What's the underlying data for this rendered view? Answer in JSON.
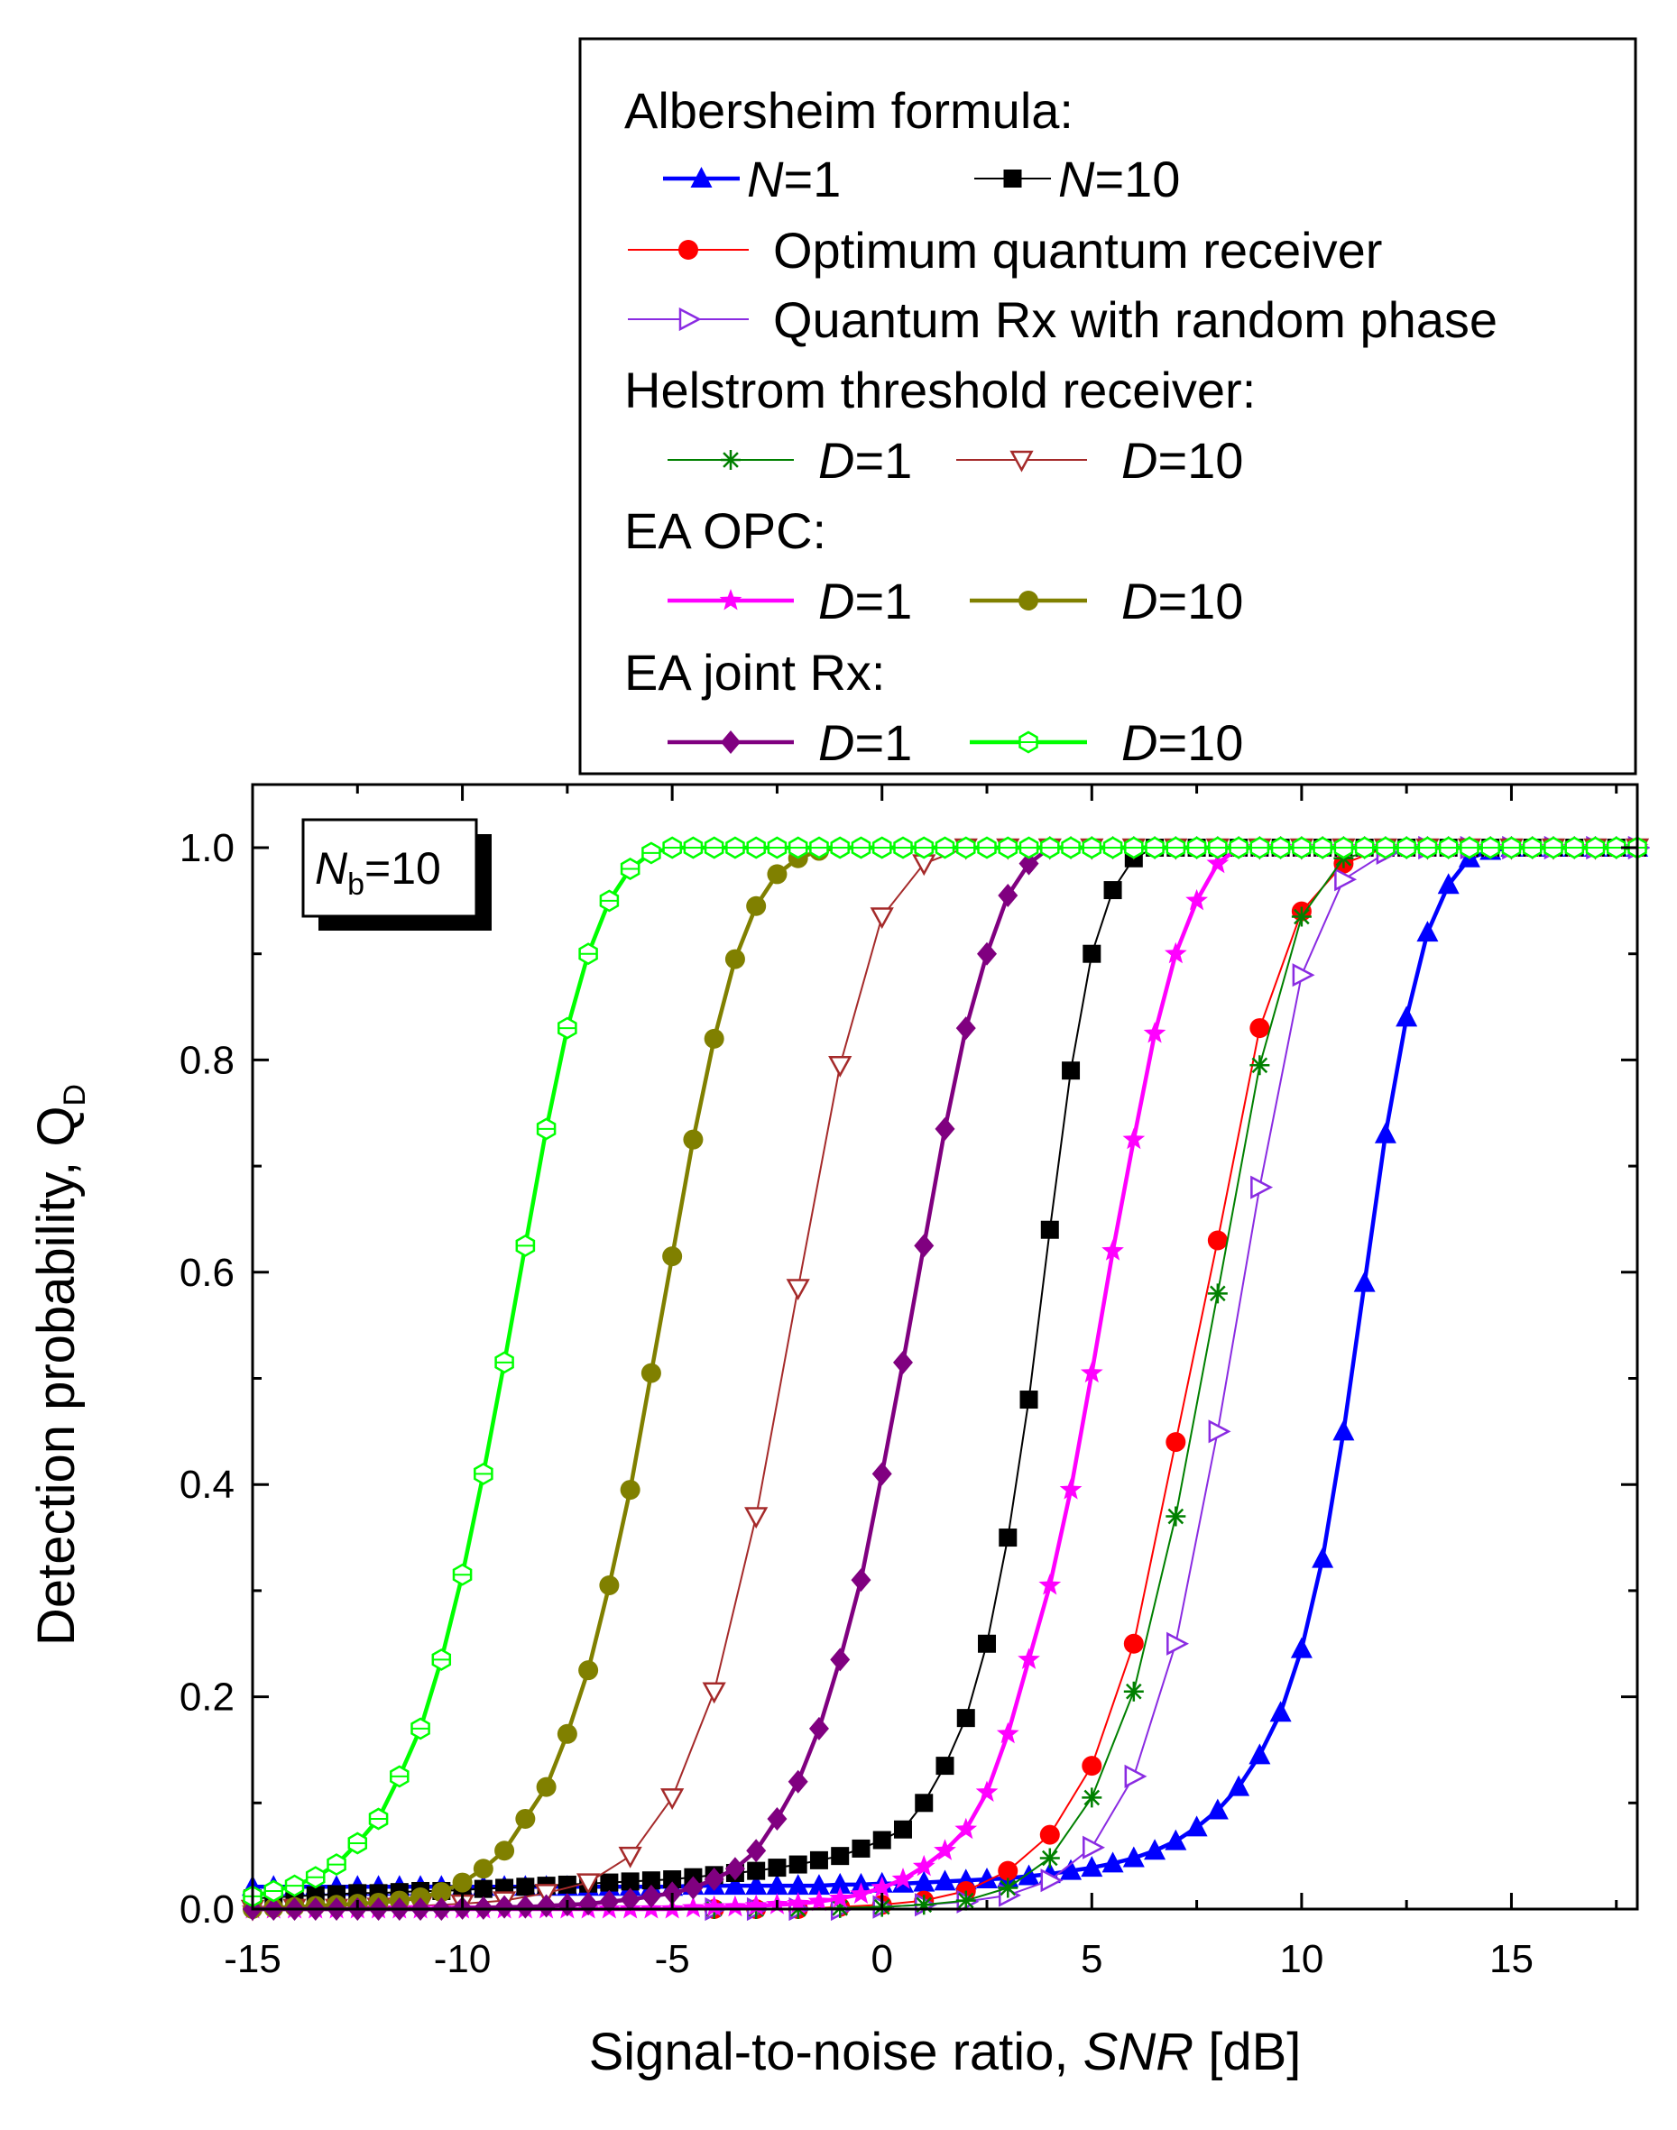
{
  "chart_data": {
    "type": "line",
    "title": "",
    "xlabel_main": "Signal-to-noise ratio, ",
    "xlabel_italic": "SNR",
    "xlabel_unit": " [dB]",
    "ylabel_main": "Detection probability, Q",
    "ylabel_sub": "D",
    "xlim": [
      -15,
      18
    ],
    "ylim": [
      0,
      1.04
    ],
    "xticks": [
      -15,
      -10,
      -5,
      0,
      5,
      10,
      15
    ],
    "xtick_labels": [
      "-15",
      "-10",
      "-5",
      "0",
      "5",
      "10",
      "15"
    ],
    "yticks": [
      0,
      0.2,
      0.4,
      0.6,
      0.8,
      1.0
    ],
    "ytick_labels": [
      "0.0",
      "0.2",
      "0.4",
      "0.6",
      "0.8",
      "1.0"
    ],
    "grid": false,
    "annotation": {
      "main": "N",
      "sub": "b",
      "rest": "=10"
    },
    "legend": {
      "placement": "top-right",
      "headers": [
        "Albersheim formula:",
        "Helstrom threshold receiver:",
        "EA OPC:",
        "EA joint Rx:"
      ],
      "entries": [
        {
          "series": 0,
          "italic": "N",
          "rest": "=1"
        },
        {
          "series": 1,
          "italic": "N",
          "rest": "=10"
        },
        {
          "series": 2,
          "italic": "",
          "rest": "Optimum quantum receiver"
        },
        {
          "series": 3,
          "italic": "",
          "rest": "Quantum Rx with random phase"
        },
        {
          "series": 4,
          "italic": "D",
          "rest": "=1"
        },
        {
          "series": 5,
          "italic": "D",
          "rest": "=10"
        },
        {
          "series": 6,
          "italic": "D",
          "rest": "=1"
        },
        {
          "series": 7,
          "italic": "D",
          "rest": "=10"
        },
        {
          "series": 8,
          "italic": "D",
          "rest": "=1"
        },
        {
          "series": 9,
          "italic": "D",
          "rest": "=10"
        }
      ]
    },
    "series": [
      {
        "name": "Albersheim formula, N=1",
        "color": "#0000ff",
        "marker": "triangle-up",
        "line": "thick",
        "x": [
          -15,
          -14.5,
          -14,
          -13.5,
          -13,
          -12.5,
          -12,
          -11.5,
          -11,
          -10.5,
          -10,
          -9.5,
          -9,
          -8.5,
          -8,
          -7.5,
          -7,
          -6.5,
          -6,
          -5.5,
          -5,
          -4.5,
          -4,
          -3.5,
          -3,
          -2.5,
          -2,
          -1.5,
          -1,
          -0.5,
          0,
          0.5,
          1,
          1.5,
          2,
          2.5,
          3,
          3.5,
          4,
          4.5,
          5,
          5.5,
          6,
          6.5,
          7,
          7.5,
          8,
          8.5,
          9,
          9.5,
          10,
          10.5,
          11,
          11.5,
          12,
          12.5,
          13,
          13.5,
          14,
          14.5,
          15,
          15.5,
          16,
          16.5,
          17,
          17.5,
          18
        ],
        "y": [
          0.021,
          0.021,
          0.021,
          0.021,
          0.021,
          0.021,
          0.021,
          0.021,
          0.021,
          0.021,
          0.021,
          0.021,
          0.021,
          0.021,
          0.021,
          0.021,
          0.021,
          0.021,
          0.021,
          0.021,
          0.021,
          0.022,
          0.022,
          0.022,
          0.022,
          0.022,
          0.022,
          0.022,
          0.023,
          0.023,
          0.024,
          0.024,
          0.025,
          0.026,
          0.027,
          0.028,
          0.029,
          0.031,
          0.033,
          0.036,
          0.039,
          0.043,
          0.048,
          0.055,
          0.064,
          0.077,
          0.093,
          0.115,
          0.145,
          0.185,
          0.245,
          0.33,
          0.45,
          0.59,
          0.73,
          0.84,
          0.92,
          0.965,
          0.99,
          0.997,
          1.0,
          1.0,
          1.0,
          1.0,
          1.0,
          1.0,
          1.0
        ]
      },
      {
        "name": "Albersheim formula, N=10",
        "color": "#000000",
        "marker": "square",
        "line": "thin",
        "x": [
          -15,
          -14.5,
          -14,
          -13.5,
          -13,
          -12.5,
          -12,
          -11.5,
          -11,
          -10.5,
          -10,
          -9.5,
          -9,
          -8.5,
          -8,
          -7.5,
          -7,
          -6.5,
          -6,
          -5.5,
          -5,
          -4.5,
          -4,
          -3.5,
          -3,
          -2.5,
          -2,
          -1.5,
          -1,
          -0.5,
          0,
          0.5,
          1,
          1.5,
          2,
          2.5,
          3,
          3.5,
          4,
          4.5,
          5,
          5.5,
          6,
          6.5,
          7,
          7.5,
          8,
          8.5,
          9,
          9.5,
          10,
          10.5,
          11,
          11.5,
          12,
          12.5,
          13,
          13.5,
          14,
          14.5,
          15,
          15.5,
          16,
          16.5,
          17,
          17.5,
          18
        ],
        "y": [
          0.01,
          0.011,
          0.012,
          0.013,
          0.014,
          0.015,
          0.015,
          0.016,
          0.017,
          0.017,
          0.018,
          0.019,
          0.02,
          0.021,
          0.022,
          0.023,
          0.024,
          0.025,
          0.026,
          0.027,
          0.028,
          0.03,
          0.032,
          0.034,
          0.036,
          0.039,
          0.042,
          0.046,
          0.05,
          0.057,
          0.065,
          0.075,
          0.1,
          0.135,
          0.18,
          0.25,
          0.35,
          0.48,
          0.64,
          0.79,
          0.9,
          0.96,
          0.99,
          1.0,
          1.0,
          1.0,
          1.0,
          1.0,
          1.0,
          1.0,
          1.0,
          1.0,
          1.0,
          1.0,
          1.0,
          1.0,
          1.0,
          1.0,
          1.0,
          1.0,
          1.0,
          1.0,
          1.0,
          1.0,
          1.0,
          1.0,
          1.0
        ]
      },
      {
        "name": "Optimum quantum receiver",
        "color": "#ff0000",
        "marker": "circle",
        "line": "thin",
        "x": [
          -4,
          -3,
          -2,
          -1,
          0,
          1,
          2,
          3,
          4,
          5,
          6,
          7,
          8,
          9,
          10,
          11,
          12,
          13,
          14,
          15,
          16,
          17,
          18
        ],
        "y": [
          0.0,
          0.0,
          0.0,
          0.002,
          0.004,
          0.008,
          0.017,
          0.036,
          0.07,
          0.135,
          0.25,
          0.44,
          0.63,
          0.83,
          0.94,
          0.985,
          1.0,
          1.0,
          1.0,
          1.0,
          1.0,
          1.0,
          1.0
        ]
      },
      {
        "name": "Quantum Rx with random phase",
        "color": "#8a2be2",
        "marker": "triangle-right-open",
        "line": "thin",
        "x": [
          -4,
          -3,
          -2,
          -1,
          0,
          1,
          2,
          3,
          4,
          5,
          6,
          7,
          8,
          9,
          10,
          11,
          12,
          13,
          14,
          15,
          16,
          17,
          18
        ],
        "y": [
          0.0,
          0.0,
          0.0,
          0.0,
          0.002,
          0.004,
          0.007,
          0.013,
          0.027,
          0.058,
          0.125,
          0.25,
          0.45,
          0.68,
          0.88,
          0.97,
          0.995,
          1.0,
          1.0,
          1.0,
          1.0,
          1.0,
          1.0
        ]
      },
      {
        "name": "Helstrom threshold receiver, D=1",
        "color": "#008000",
        "marker": "asterisk",
        "line": "thin",
        "x": [
          -4,
          -3,
          -2,
          -1,
          0,
          1,
          2,
          3,
          4,
          5,
          6,
          7,
          8,
          9,
          10,
          11,
          12,
          13,
          14,
          15,
          16,
          17,
          18
        ],
        "y": [
          0.0,
          0.0,
          0.0,
          0.001,
          0.002,
          0.004,
          0.008,
          0.02,
          0.048,
          0.105,
          0.205,
          0.37,
          0.58,
          0.795,
          0.935,
          0.99,
          1.0,
          1.0,
          1.0,
          1.0,
          1.0,
          1.0,
          1.0
        ]
      },
      {
        "name": "Helstrom threshold receiver, D=10",
        "color": "#a52a2a",
        "marker": "triangle-down-open",
        "line": "thin",
        "x": [
          -15,
          -14,
          -13,
          -12,
          -11,
          -10,
          -9,
          -8,
          -7,
          -6,
          -5,
          -4,
          -3,
          -2,
          -1,
          0,
          1,
          2,
          3,
          4,
          5,
          6,
          7,
          8,
          9,
          10,
          11,
          12,
          13,
          14,
          15,
          16,
          17,
          18
        ],
        "y": [
          0.0,
          0.001,
          0.001,
          0.002,
          0.003,
          0.005,
          0.008,
          0.015,
          0.025,
          0.05,
          0.105,
          0.205,
          0.37,
          0.585,
          0.795,
          0.935,
          0.985,
          1.0,
          1.0,
          1.0,
          1.0,
          1.0,
          1.0,
          1.0,
          1.0,
          1.0,
          1.0,
          1.0,
          1.0,
          1.0,
          1.0,
          1.0,
          1.0,
          1.0
        ]
      },
      {
        "name": "EA OPC, D=1",
        "color": "#ff00ff",
        "marker": "star",
        "line": "thick",
        "x": [
          -15,
          -14.5,
          -14,
          -13.5,
          -13,
          -12.5,
          -12,
          -11.5,
          -11,
          -10.5,
          -10,
          -9.5,
          -9,
          -8.5,
          -8,
          -7.5,
          -7,
          -6.5,
          -6,
          -5.5,
          -5,
          -4.5,
          -4,
          -3.5,
          -3,
          -2.5,
          -2,
          -1.5,
          -1,
          -0.5,
          0,
          0.5,
          1,
          1.5,
          2,
          2.5,
          3,
          3.5,
          4,
          4.5,
          5,
          5.5,
          6,
          6.5,
          7,
          7.5,
          8,
          8.5,
          9,
          9.5,
          10,
          10.5,
          11,
          11.5,
          12,
          12.5,
          13,
          13.5,
          14,
          14.5,
          15,
          15.5,
          16,
          16.5,
          17,
          17.5,
          18
        ],
        "y": [
          0.0,
          0.0,
          0.0,
          0.0,
          0.0,
          0.0,
          0.0,
          0.0,
          0.0,
          0.0,
          0.0,
          0.0,
          0.0,
          0.0,
          0.0,
          0.0,
          0.0,
          0.0,
          0.0,
          0.0,
          0.0,
          0.001,
          0.002,
          0.002,
          0.003,
          0.004,
          0.005,
          0.007,
          0.01,
          0.014,
          0.02,
          0.028,
          0.04,
          0.055,
          0.075,
          0.11,
          0.165,
          0.235,
          0.305,
          0.395,
          0.505,
          0.62,
          0.725,
          0.825,
          0.9,
          0.95,
          0.985,
          1.0,
          1.0,
          1.0,
          1.0,
          1.0,
          1.0,
          1.0,
          1.0,
          1.0,
          1.0,
          1.0,
          1.0,
          1.0,
          1.0,
          1.0,
          1.0,
          1.0,
          1.0,
          1.0,
          1.0
        ]
      },
      {
        "name": "EA OPC, D=10",
        "color": "#808000",
        "marker": "circle",
        "line": "thick",
        "x": [
          -15,
          -14.5,
          -14,
          -13.5,
          -13,
          -12.5,
          -12,
          -11.5,
          -11,
          -10.5,
          -10,
          -9.5,
          -9,
          -8.5,
          -8,
          -7.5,
          -7,
          -6.5,
          -6,
          -5.5,
          -5,
          -4.5,
          -4,
          -3.5,
          -3,
          -2.5,
          -2,
          -1.5,
          -1,
          -0.5,
          0,
          0.5,
          1,
          1.5,
          2,
          2.5,
          3,
          3.5,
          4,
          4.5,
          5,
          5.5,
          6,
          6.5,
          7,
          7.5,
          8,
          8.5,
          9,
          9.5,
          10,
          10.5,
          11,
          11.5,
          12,
          12.5,
          13,
          13.5,
          14,
          14.5,
          15,
          15.5,
          16,
          16.5,
          17,
          17.5,
          18
        ],
        "y": [
          0.0,
          0.001,
          0.002,
          0.003,
          0.004,
          0.005,
          0.006,
          0.008,
          0.011,
          0.016,
          0.025,
          0.038,
          0.055,
          0.085,
          0.115,
          0.165,
          0.225,
          0.305,
          0.395,
          0.505,
          0.615,
          0.725,
          0.82,
          0.895,
          0.945,
          0.975,
          0.99,
          0.997,
          1.0,
          1.0,
          1.0,
          1.0,
          1.0,
          1.0,
          1.0,
          1.0,
          1.0,
          1.0,
          1.0,
          1.0,
          1.0,
          1.0,
          1.0,
          1.0,
          1.0,
          1.0,
          1.0,
          1.0,
          1.0,
          1.0,
          1.0,
          1.0,
          1.0,
          1.0,
          1.0,
          1.0,
          1.0,
          1.0,
          1.0,
          1.0,
          1.0,
          1.0,
          1.0,
          1.0,
          1.0,
          1.0,
          1.0
        ]
      },
      {
        "name": "EA joint Rx, D=1",
        "color": "#800080",
        "marker": "diamond",
        "line": "thick",
        "x": [
          -15,
          -14.5,
          -14,
          -13.5,
          -13,
          -12.5,
          -12,
          -11.5,
          -11,
          -10.5,
          -10,
          -9.5,
          -9,
          -8.5,
          -8,
          -7.5,
          -7,
          -6.5,
          -6,
          -5.5,
          -5,
          -4.5,
          -4,
          -3.5,
          -3,
          -2.5,
          -2,
          -1.5,
          -1,
          -0.5,
          0,
          0.5,
          1,
          1.5,
          2,
          2.5,
          3,
          3.5,
          4,
          4.5,
          5,
          5.5,
          6,
          6.5,
          7,
          7.5,
          8,
          8.5,
          9,
          9.5,
          10,
          10.5,
          11,
          11.5,
          12,
          12.5,
          13,
          13.5,
          14,
          14.5,
          15,
          15.5,
          16,
          16.5,
          17,
          17.5,
          18
        ],
        "y": [
          0.0,
          0.0,
          0.0,
          0.0,
          0.0,
          0.0,
          0.0,
          0.0,
          0.0,
          0.0,
          0.001,
          0.001,
          0.002,
          0.002,
          0.003,
          0.004,
          0.005,
          0.007,
          0.009,
          0.012,
          0.015,
          0.02,
          0.028,
          0.038,
          0.055,
          0.085,
          0.12,
          0.17,
          0.235,
          0.31,
          0.41,
          0.515,
          0.625,
          0.735,
          0.83,
          0.9,
          0.955,
          0.985,
          1.0,
          1.0,
          1.0,
          1.0,
          1.0,
          1.0,
          1.0,
          1.0,
          1.0,
          1.0,
          1.0,
          1.0,
          1.0,
          1.0,
          1.0,
          1.0,
          1.0,
          1.0,
          1.0,
          1.0,
          1.0,
          1.0,
          1.0,
          1.0,
          1.0,
          1.0,
          1.0,
          1.0,
          1.0
        ]
      },
      {
        "name": "EA joint Rx, D=10",
        "color": "#00ff00",
        "marker": "hexagon-open",
        "line": "thick",
        "x": [
          -15,
          -14.5,
          -14,
          -13.5,
          -13,
          -12.5,
          -12,
          -11.5,
          -11,
          -10.5,
          -10,
          -9.5,
          -9,
          -8.5,
          -8,
          -7.5,
          -7,
          -6.5,
          -6,
          -5.5,
          -5,
          -4.5,
          -4,
          -3.5,
          -3,
          -2.5,
          -2,
          -1.5,
          -1,
          -0.5,
          0,
          0.5,
          1,
          1.5,
          2,
          2.5,
          3,
          3.5,
          4,
          4.5,
          5,
          5.5,
          6,
          6.5,
          7,
          7.5,
          8,
          8.5,
          9,
          9.5,
          10,
          10.5,
          11,
          11.5,
          12,
          12.5,
          13,
          13.5,
          14,
          14.5,
          15,
          15.5,
          16,
          16.5,
          17,
          17.5,
          18
        ],
        "y": [
          0.012,
          0.017,
          0.022,
          0.03,
          0.042,
          0.062,
          0.085,
          0.125,
          0.17,
          0.235,
          0.315,
          0.41,
          0.515,
          0.625,
          0.735,
          0.83,
          0.9,
          0.95,
          0.98,
          0.995,
          1.0,
          1.0,
          1.0,
          1.0,
          1.0,
          1.0,
          1.0,
          1.0,
          1.0,
          1.0,
          1.0,
          1.0,
          1.0,
          1.0,
          1.0,
          1.0,
          1.0,
          1.0,
          1.0,
          1.0,
          1.0,
          1.0,
          1.0,
          1.0,
          1.0,
          1.0,
          1.0,
          1.0,
          1.0,
          1.0,
          1.0,
          1.0,
          1.0,
          1.0,
          1.0,
          1.0,
          1.0,
          1.0,
          1.0,
          1.0,
          1.0,
          1.0,
          1.0,
          1.0,
          1.0,
          1.0,
          1.0
        ]
      }
    ]
  }
}
